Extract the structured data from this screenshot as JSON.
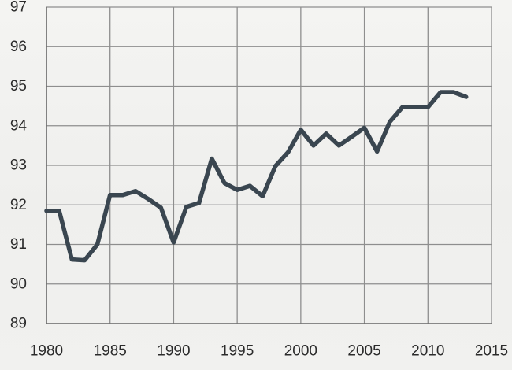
{
  "chart_data": {
    "type": "line",
    "title": "",
    "xlabel": "",
    "ylabel": "",
    "xlim": [
      1980,
      2015
    ],
    "ylim": [
      89,
      97
    ],
    "x_ticks": [
      1980,
      1985,
      1990,
      1995,
      2000,
      2005,
      2010,
      2015
    ],
    "y_ticks": [
      89,
      90,
      91,
      92,
      93,
      94,
      95,
      96,
      97
    ],
    "grid": true,
    "legend": "none",
    "series": [
      {
        "color": "#3a4650",
        "x": [
          1980,
          1981,
          1982,
          1983,
          1984,
          1985,
          1986,
          1987,
          1988,
          1989,
          1990,
          1991,
          1992,
          1993,
          1994,
          1995,
          1996,
          1997,
          1998,
          1999,
          2000,
          2001,
          2002,
          2003,
          2004,
          2005,
          2006,
          2007,
          2008,
          2009,
          2010,
          2011,
          2012,
          2013
        ],
        "values": [
          91.85,
          91.85,
          90.62,
          90.6,
          91.0,
          92.25,
          92.25,
          92.35,
          92.15,
          91.93,
          91.05,
          91.95,
          92.05,
          93.17,
          92.55,
          92.38,
          92.48,
          92.22,
          92.98,
          93.33,
          93.9,
          93.5,
          93.8,
          93.5,
          93.72,
          93.95,
          93.35,
          94.1,
          94.47,
          94.47,
          94.47,
          94.85,
          94.85,
          94.73
        ]
      }
    ]
  }
}
